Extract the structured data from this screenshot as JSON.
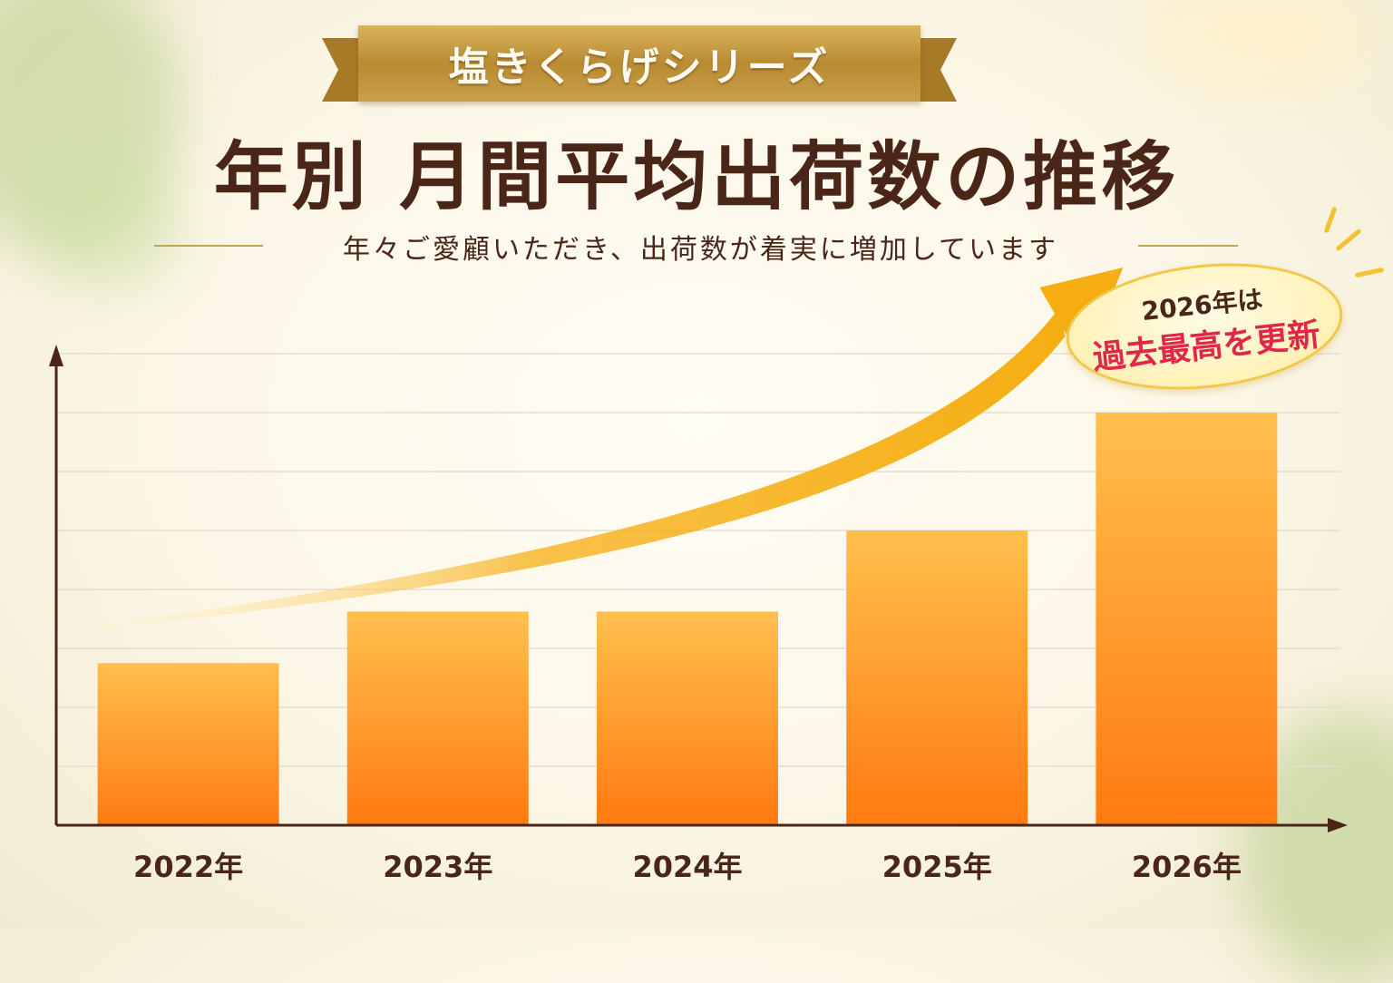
{
  "series_banner": "塩きくらげシリーズ",
  "title": "年別 月間平均出荷数の推移",
  "subtitle": "年々ご愛顧いただき、出荷数が着実に増加しています",
  "badge": {
    "line1": "2026年は",
    "line2": "過去最高を更新"
  },
  "colors": {
    "bar_top": "#ffc04e",
    "bar_bottom": "#ff7a12",
    "arrow": "#f6ae12",
    "axis": "#4a2618",
    "badge_accent": "#e0274a"
  },
  "chart_data": {
    "type": "bar",
    "categories": [
      "2022年",
      "2023年",
      "2024年",
      "2025年",
      "2026年"
    ],
    "values": [
      2.2,
      2.9,
      2.9,
      4.0,
      5.6
    ],
    "title": "年別 月間平均出荷数の推移",
    "xlabel": "",
    "ylabel": "",
    "ylim": [
      0,
      6.4
    ],
    "y_tick_labels_shown": false,
    "grid": true,
    "legend": "none",
    "annotations": [
      "trend arrow rising toward 2026",
      "2026年は 過去最高を更新"
    ]
  }
}
